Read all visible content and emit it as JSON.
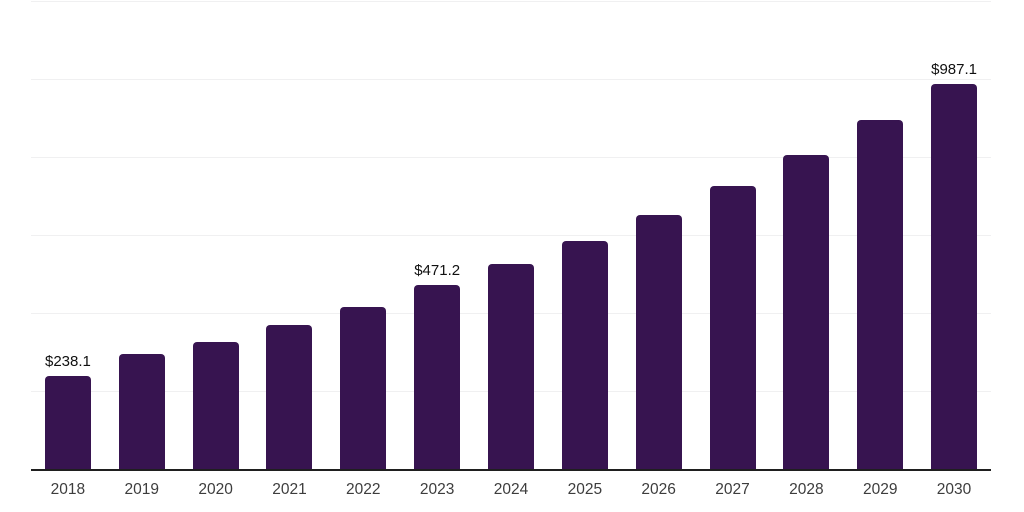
{
  "chart_data": {
    "type": "bar",
    "title": "",
    "xlabel": "",
    "ylabel": "",
    "categories": [
      "2018",
      "2019",
      "2020",
      "2021",
      "2022",
      "2023",
      "2024",
      "2025",
      "2026",
      "2027",
      "2028",
      "2029",
      "2030"
    ],
    "values": [
      238.1,
      296,
      326,
      369,
      416,
      471.2,
      526,
      586,
      651,
      727,
      806,
      894,
      987.1
    ],
    "data_labels": [
      "$238.1",
      "",
      "",
      "",
      "",
      "$471.2",
      "",
      "",
      "",
      "",
      "",
      "",
      "$987.1"
    ],
    "ylim": [
      0,
      1200
    ],
    "gridline_interval": 200,
    "grid": true,
    "y_axis_tick_labels_visible": false,
    "legend": "none",
    "colors": {
      "bar": "#371450",
      "axis_line": "#1f1f1f",
      "gridline": "#f0f0f1",
      "value_label": "#101010",
      "tick_label": "#3d3d3d",
      "background": "#ffffff"
    }
  }
}
